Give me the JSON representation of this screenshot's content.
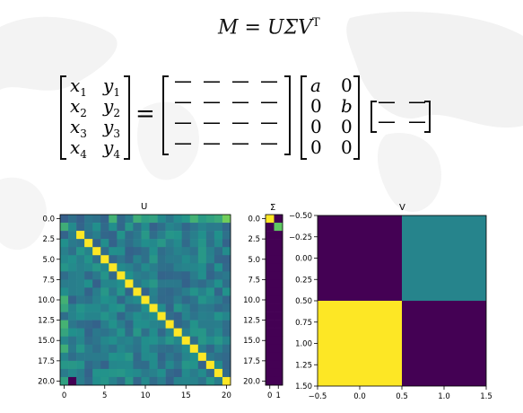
{
  "equation": {
    "title": {
      "lhs": "M",
      "eq": "=",
      "rhs": "UΣV",
      "sup": "T"
    },
    "lhs_matrix": [
      [
        "x",
        "1",
        "y",
        "1"
      ],
      [
        "x",
        "2",
        "y",
        "2"
      ],
      [
        "x",
        "3",
        "y",
        "3"
      ],
      [
        "x",
        "4",
        "y",
        "4"
      ]
    ],
    "equals": "=",
    "u_dash": "—",
    "sigma_matrix": [
      [
        "a",
        "0"
      ],
      [
        "0",
        "b"
      ],
      [
        "0",
        "0"
      ],
      [
        "0",
        "0"
      ]
    ],
    "v_dash": "—"
  },
  "colors": {
    "viridis_dark": "#440154",
    "viridis_teal": "#21918c",
    "viridis_blue": "#26828e",
    "viridis_yellow": "#fde725",
    "viridis_green": "#5ec962"
  },
  "chart_data": [
    {
      "type": "heatmap",
      "title": "U",
      "shape": [
        21,
        21
      ],
      "colormap": "viridis",
      "xticks": [
        "0",
        "5",
        "10",
        "15",
        "20"
      ],
      "yticks": [
        "0.0",
        "2.5",
        "5.0",
        "7.5",
        "10.0",
        "12.5",
        "15.0",
        "17.5",
        "20.0"
      ],
      "description_values": "diagonal from (2,2) to (20,20) ≈ 1.0; off-diagonal ≈ 0; corners (0,20) high, (20,1) low"
    },
    {
      "type": "heatmap",
      "title": "Σ",
      "shape": [
        21,
        2
      ],
      "colormap": "viridis",
      "xticks": [
        "0",
        "1"
      ],
      "yticks": [
        "0.0",
        "2.5",
        "5.0",
        "7.5",
        "10.0",
        "12.5",
        "15.0",
        "17.5",
        "20.0"
      ],
      "values_nonzero": [
        {
          "row": 0,
          "col": 0,
          "level": 1.0
        },
        {
          "row": 1,
          "col": 1,
          "level": 0.75
        }
      ]
    },
    {
      "type": "heatmap",
      "title": "V",
      "shape": [
        2,
        2
      ],
      "colormap": "viridis",
      "values": [
        [
          0.0,
          0.45
        ],
        [
          1.0,
          0.0
        ]
      ],
      "xlim": [
        -0.5,
        1.5
      ],
      "ylim": [
        1.5,
        -0.5
      ],
      "xticks": [
        "−0.5",
        "0.0",
        "0.5",
        "1.0",
        "1.5"
      ],
      "yticks": [
        "−0.50",
        "−0.25",
        "0.00",
        "0.25",
        "0.50",
        "0.75",
        "1.00",
        "1.25",
        "1.50"
      ]
    }
  ]
}
